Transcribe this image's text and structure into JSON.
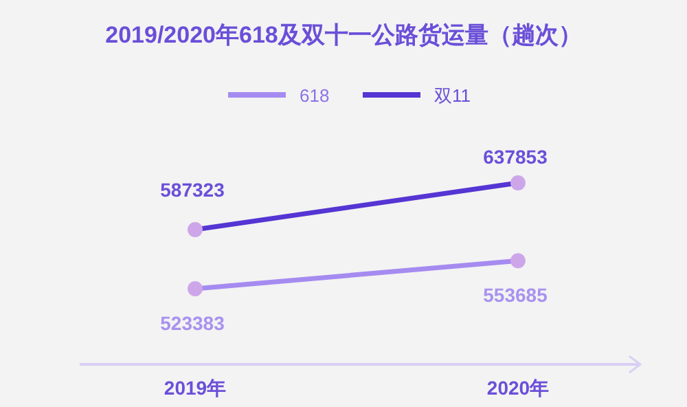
{
  "chart_data": {
    "type": "line",
    "title": "2019/2020年618及双十一公路货运量（趟次）",
    "categories": [
      "2019年",
      "2020年"
    ],
    "series": [
      {
        "name": "618",
        "color": "#a58bf0",
        "values": [
          523383,
          553685
        ]
      },
      {
        "name": "双11",
        "color": "#5535d3",
        "values": [
          587323,
          637853
        ]
      }
    ],
    "data_labels": true,
    "marker": "circle",
    "legend": "top"
  }
}
